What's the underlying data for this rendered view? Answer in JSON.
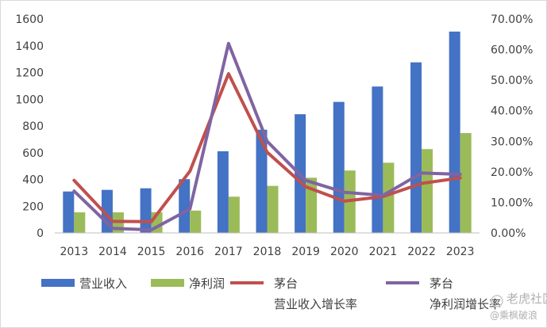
{
  "chart_data": {
    "type": "bar",
    "categories": [
      "2013",
      "2014",
      "2015",
      "2016",
      "2017",
      "2018",
      "2019",
      "2020",
      "2021",
      "2022",
      "2023"
    ],
    "series": [
      {
        "name": "营业收入",
        "type": "bar",
        "axis": "left",
        "color": "#4472c4",
        "values": [
          310,
          322,
          334,
          402,
          611,
          772,
          888,
          980,
          1095,
          1276,
          1506
        ]
      },
      {
        "name": "净利润",
        "type": "bar",
        "axis": "left",
        "color": "#9bbb59",
        "values": [
          154,
          154,
          155,
          167,
          271,
          352,
          413,
          467,
          525,
          627,
          747
        ]
      },
      {
        "name": "茅台\n营业收入增长率",
        "type": "line",
        "axis": "right",
        "color": "#c0504d",
        "values": [
          0.172,
          0.038,
          0.037,
          0.202,
          0.521,
          0.264,
          0.151,
          0.104,
          0.119,
          0.162,
          0.18
        ]
      },
      {
        "name": "茅台\n净利润增长率",
        "type": "line",
        "axis": "right",
        "color": "#8064a2",
        "values": [
          0.137,
          0.015,
          0.01,
          0.078,
          0.62,
          0.3,
          0.172,
          0.133,
          0.123,
          0.196,
          0.192
        ]
      }
    ],
    "ylim_left": [
      0,
      1600
    ],
    "yticks_left": [
      "0",
      "200",
      "400",
      "600",
      "800",
      "1000",
      "1200",
      "1400",
      "1600"
    ],
    "ylim_right": [
      0,
      0.7
    ],
    "yticks_right": [
      "0.00%",
      "10.00%",
      "20.00%",
      "30.00%",
      "40.00%",
      "50.00%",
      "60.00%",
      "70.00%"
    ],
    "grid": false,
    "legend_position": "bottom"
  },
  "watermark": {
    "line1": "老虎社区",
    "line2": "@乘枫破浪"
  }
}
